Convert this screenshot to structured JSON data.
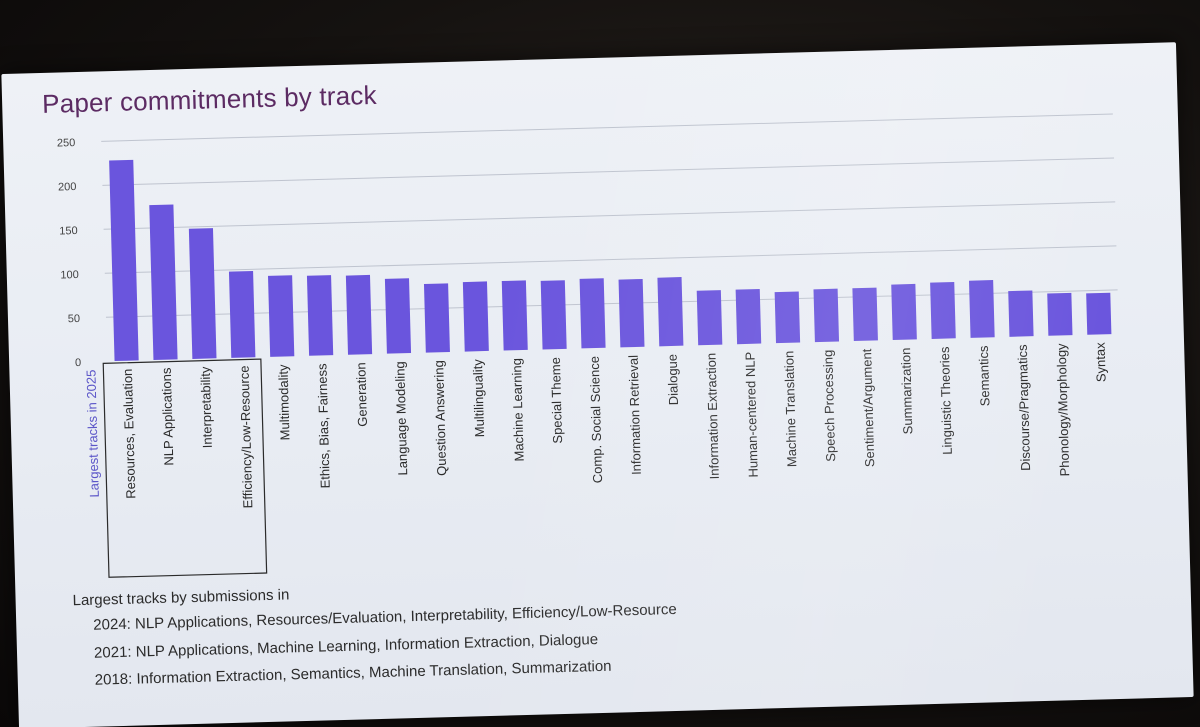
{
  "chart_data": {
    "type": "bar",
    "title": "Paper commitments by track",
    "xlabel": "",
    "ylabel": "",
    "ylim": [
      0,
      250
    ],
    "yticks": [
      0,
      50,
      100,
      150,
      200,
      250
    ],
    "grid": true,
    "categories": [
      "Resources, Evaluation",
      "NLP Applications",
      "Interpretability",
      "Efficiency/Low-Resource",
      "Multimodality",
      "Ethics, Bias, Fairness",
      "Generation",
      "Language Modeling",
      "Question Answering",
      "Multilinguality",
      "Machine Learning",
      "Special Theme",
      "Comp. Social Science",
      "Information Retrieval",
      "Dialogue",
      "Information Extraction",
      "Human-centered NLP",
      "Machine Translation",
      "Speech Processing",
      "Sentiment/Argument",
      "Summarization",
      "Linguistic Theories",
      "Semantics",
      "Discourse/Pragmatics",
      "Phonology/Morphology",
      "Syntax"
    ],
    "values": [
      228,
      176,
      148,
      98,
      92,
      91,
      90,
      85,
      78,
      79,
      79,
      78,
      79,
      77,
      78,
      62,
      62,
      58,
      60,
      60,
      63,
      64,
      65,
      52,
      48,
      47
    ],
    "highlight": {
      "label": "Largest tracks in 2025",
      "count": 4
    }
  },
  "notes": {
    "heading": "Largest tracks by submissions in",
    "lines": [
      "2024: NLP Applications, Resources/Evaluation, Interpretability, Efficiency/Low-Resource",
      "2021: NLP Applications, Machine Learning, Information Extraction, Dialogue",
      "2018: Information Extraction, Semantics, Machine Translation, Summarization"
    ]
  },
  "colors": {
    "bar": "#6a55dd",
    "title": "#5c2b63",
    "highlight_label": "#5b55c8"
  }
}
